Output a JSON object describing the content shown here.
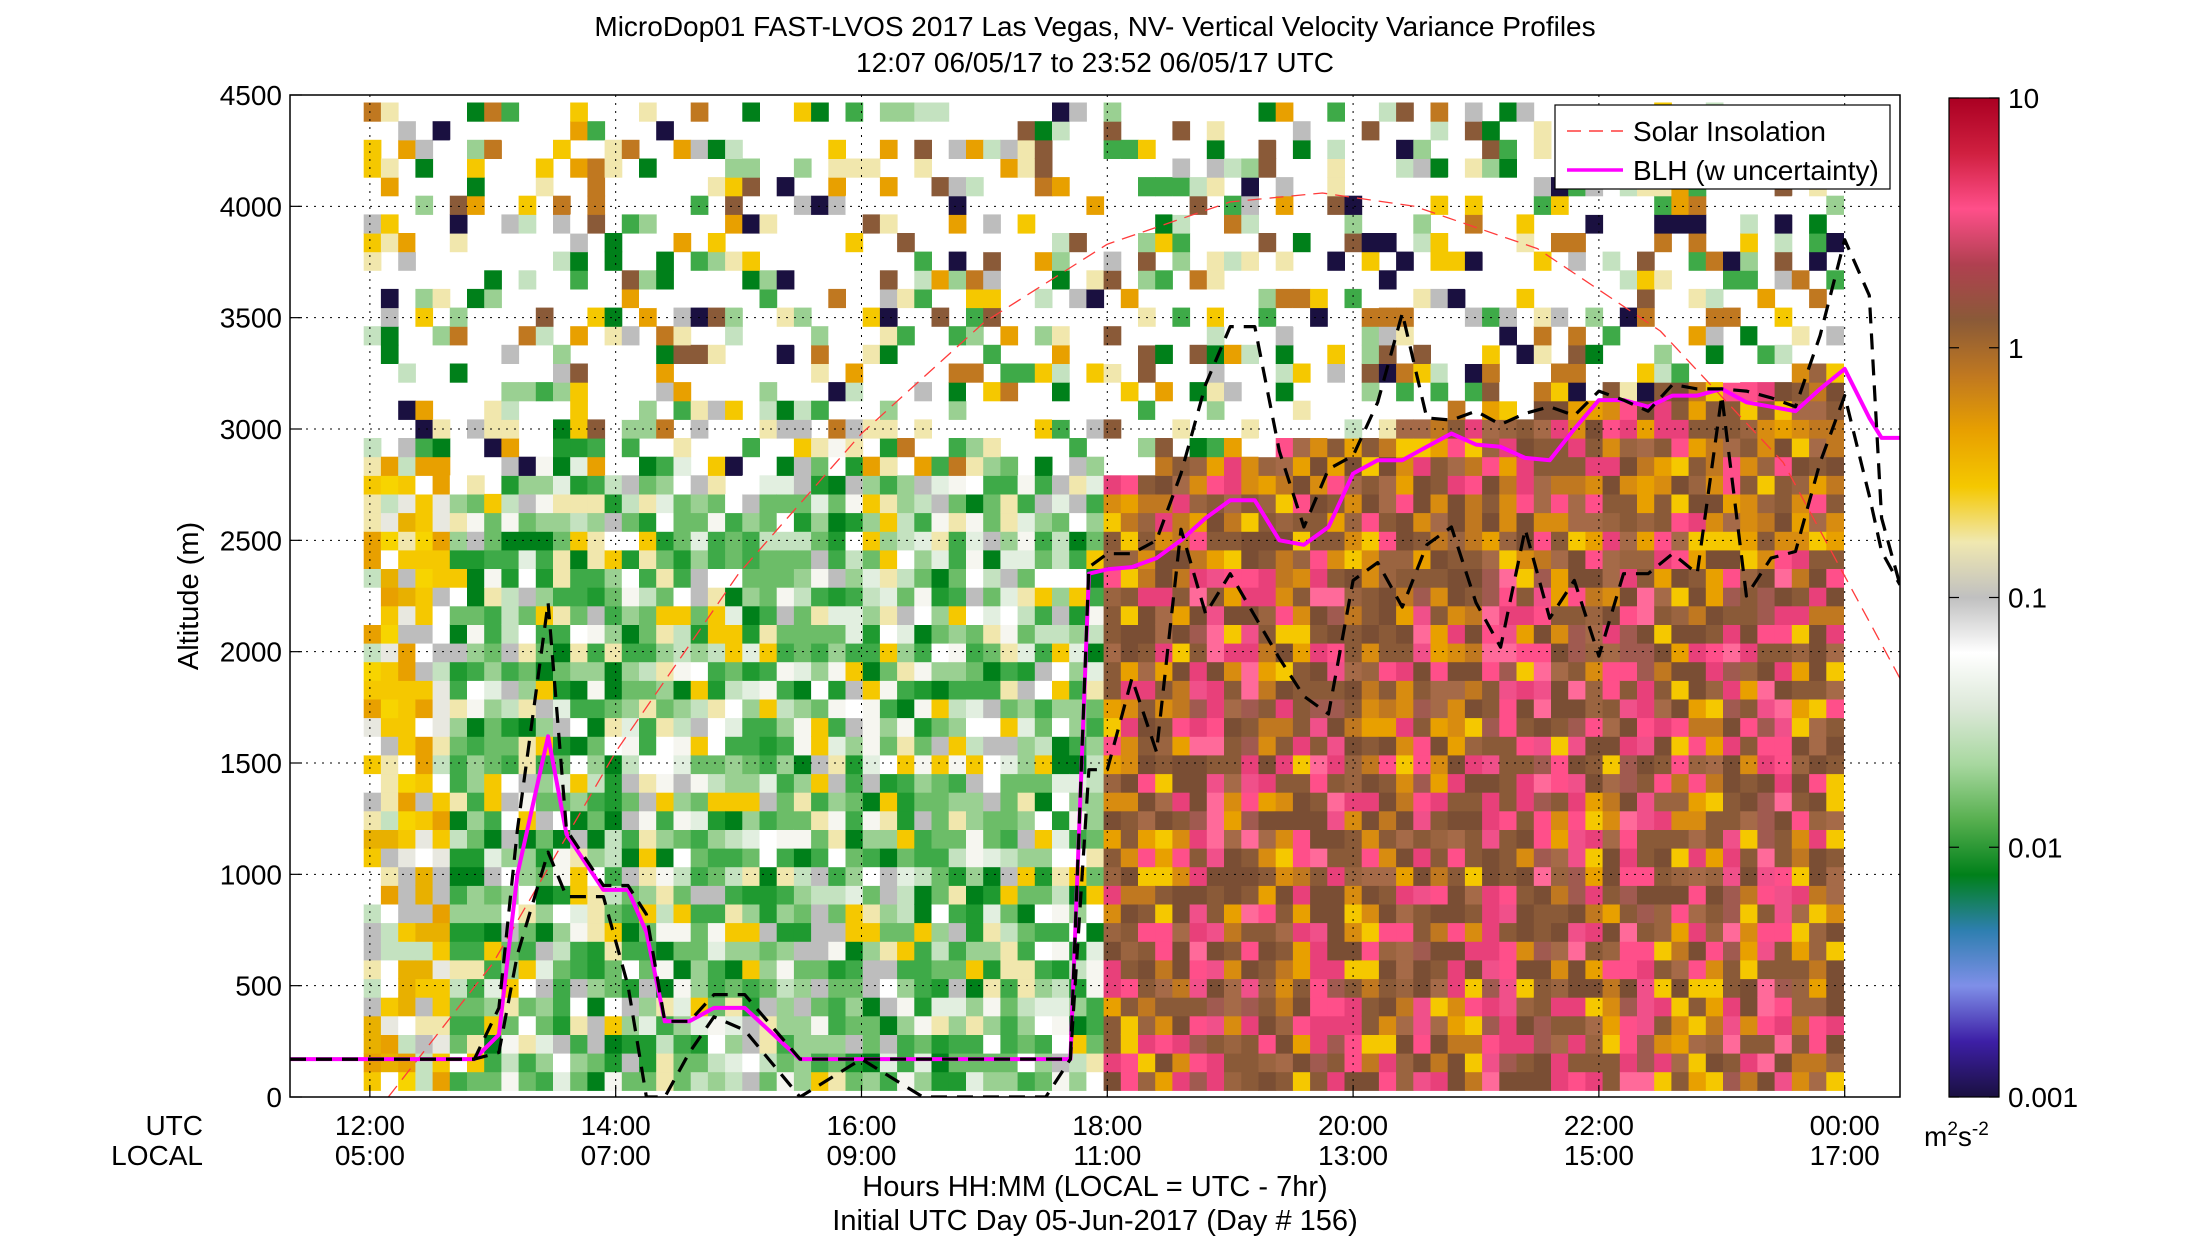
{
  "chart_data": {
    "type": "heatmap",
    "title": "MicroDop01 FAST-LVOS 2017 Las Vegas, NV- Vertical Velocity Variance Profiles",
    "subtitle": "12:07 06/05/17 to 23:52 06/05/17  UTC",
    "ylabel": "Altitude (m)",
    "xlabel": "Hours HH:MM  (LOCAL = UTC - 7hr)",
    "xlabel2": "Initial UTC Day 05-Jun-2017 (Day # 156)",
    "x_row_labels": [
      "UTC",
      "LOCAL"
    ],
    "x_ticks_utc": [
      "12:00",
      "14:00",
      "16:00",
      "18:00",
      "20:00",
      "22:00",
      "00:00"
    ],
    "x_ticks_local": [
      "05:00",
      "07:00",
      "09:00",
      "11:00",
      "13:00",
      "15:00",
      "17:00"
    ],
    "x_tick_hours": [
      12,
      14,
      16,
      18,
      20,
      22,
      24
    ],
    "xlim_hours": [
      11.35,
      24.45
    ],
    "ylim": [
      0,
      4500
    ],
    "y_ticks": [
      "0",
      "500",
      "1000",
      "1500",
      "2000",
      "2500",
      "3000",
      "3500",
      "4000",
      "4500"
    ],
    "y_tick_values": [
      0,
      500,
      1000,
      1500,
      2000,
      2500,
      3000,
      3500,
      4000,
      4500
    ],
    "grid": true,
    "legend_placement": "top-right",
    "colorbar": {
      "scale": "log",
      "range": [
        0.001,
        10
      ],
      "tick_labels": [
        "0.001",
        "0.01",
        "0.1",
        "1",
        "10"
      ],
      "tick_values": [
        0.001,
        0.01,
        0.1,
        1,
        10
      ],
      "unit_label": "m2s-2",
      "colormap": [
        "#1a1040",
        "#3d1fa6",
        "#7f8fe8",
        "#2e7fb0",
        "#00801a",
        "#58b050",
        "#a8d8a0",
        "#dce8d8",
        "#ffffff",
        "#c0c0c0",
        "#f0e8b0",
        "#f5c800",
        "#e8a000",
        "#c07820",
        "#8a5a38",
        "#b04050",
        "#ff4f8a",
        "#d02040",
        "#aa0022"
      ]
    },
    "series": [
      {
        "name": "Solar Insolation",
        "style": "dashed",
        "color": "#ff3b3b",
        "x_hours": [
          12.15,
          13.0,
          14.0,
          15.0,
          16.0,
          17.0,
          18.0,
          19.0,
          19.75,
          20.5,
          21.5,
          22.5,
          23.5,
          24.45
        ],
        "y": [
          0,
          600,
          1550,
          2350,
          2980,
          3480,
          3830,
          4020,
          4060,
          4000,
          3810,
          3440,
          2850,
          1880
        ]
      },
      {
        "name": "BLH (w uncertainty)",
        "style": "solid",
        "color": "#ff00ff",
        "x_hours": [
          11.35,
          12.0,
          12.5,
          12.85,
          13.05,
          13.2,
          13.45,
          13.6,
          13.9,
          14.1,
          14.25,
          14.4,
          14.6,
          14.8,
          15.05,
          15.5,
          16.0,
          16.5,
          17.0,
          17.5,
          17.7,
          17.85,
          18.0,
          18.2,
          18.4,
          18.6,
          18.8,
          19.0,
          19.2,
          19.4,
          19.6,
          19.8,
          20.0,
          20.2,
          20.4,
          20.6,
          20.8,
          21.0,
          21.2,
          21.4,
          21.6,
          21.8,
          22.0,
          22.2,
          22.4,
          22.6,
          22.8,
          23.0,
          23.2,
          23.4,
          23.6,
          23.8,
          24.0,
          24.2,
          24.3,
          24.45
        ],
        "y": [
          170,
          170,
          170,
          170,
          280,
          1000,
          1620,
          1180,
          930,
          930,
          740,
          340,
          340,
          400,
          400,
          170,
          170,
          170,
          170,
          170,
          170,
          2350,
          2370,
          2380,
          2420,
          2500,
          2600,
          2680,
          2680,
          2500,
          2480,
          2560,
          2800,
          2860,
          2860,
          2920,
          2980,
          2930,
          2920,
          2870,
          2860,
          3000,
          3130,
          3130,
          3100,
          3150,
          3150,
          3180,
          3120,
          3100,
          3080,
          3180,
          3270,
          3050,
          2960,
          2960
        ]
      },
      {
        "name": "BLH upper",
        "style": "dashed",
        "color": "#000000",
        "x_hours": [
          11.35,
          12.0,
          12.5,
          12.85,
          13.05,
          13.2,
          13.45,
          13.6,
          13.9,
          14.1,
          14.25,
          14.4,
          14.6,
          14.8,
          15.05,
          15.5,
          16.0,
          16.5,
          17.0,
          17.5,
          17.7,
          17.85,
          18.0,
          18.2,
          18.4,
          18.6,
          18.8,
          19.0,
          19.2,
          19.4,
          19.6,
          19.8,
          20.0,
          20.2,
          20.4,
          20.6,
          20.8,
          21.0,
          21.2,
          21.4,
          21.6,
          21.8,
          22.0,
          22.2,
          22.4,
          22.6,
          22.8,
          23.0,
          23.2,
          23.4,
          23.6,
          23.8,
          24.0,
          24.2,
          24.3,
          24.45
        ],
        "y": [
          170,
          170,
          170,
          170,
          400,
          1200,
          2220,
          1200,
          950,
          950,
          820,
          340,
          340,
          460,
          460,
          170,
          170,
          170,
          170,
          170,
          170,
          2380,
          2440,
          2440,
          2500,
          2800,
          3200,
          3460,
          3460,
          2900,
          2560,
          2820,
          2880,
          3120,
          3520,
          3050,
          3040,
          3080,
          3020,
          3070,
          3100,
          3060,
          3170,
          3130,
          3080,
          3200,
          3180,
          3180,
          3170,
          3140,
          3100,
          3420,
          3850,
          3600,
          2600,
          2300
        ]
      },
      {
        "name": "BLH lower",
        "style": "dashed",
        "color": "#000000",
        "x_hours": [
          11.35,
          12.0,
          12.5,
          12.85,
          13.05,
          13.2,
          13.45,
          13.6,
          13.9,
          14.1,
          14.25,
          14.4,
          14.6,
          14.8,
          15.05,
          15.5,
          16.0,
          16.5,
          17.0,
          17.5,
          17.7,
          17.85,
          18.0,
          18.2,
          18.4,
          18.6,
          18.8,
          19.0,
          19.2,
          19.4,
          19.6,
          19.8,
          20.0,
          20.2,
          20.4,
          20.6,
          20.8,
          21.0,
          21.2,
          21.4,
          21.6,
          21.8,
          22.0,
          22.2,
          22.4,
          22.6,
          22.8,
          23.0,
          23.2,
          23.4,
          23.6,
          23.8,
          24.0,
          24.2,
          24.3,
          24.45
        ],
        "y": [
          170,
          170,
          170,
          170,
          200,
          640,
          1100,
          900,
          900,
          500,
          0,
          0,
          200,
          360,
          300,
          0,
          170,
          0,
          0,
          0,
          170,
          1470,
          1470,
          1880,
          1550,
          2550,
          2170,
          2350,
          2160,
          1970,
          1800,
          1720,
          2320,
          2400,
          2200,
          2480,
          2560,
          2220,
          2020,
          2550,
          2150,
          2320,
          1980,
          2350,
          2350,
          2440,
          2350,
          3150,
          2250,
          2420,
          2450,
          2850,
          3150,
          2700,
          2450,
          2300
        ]
      }
    ]
  }
}
